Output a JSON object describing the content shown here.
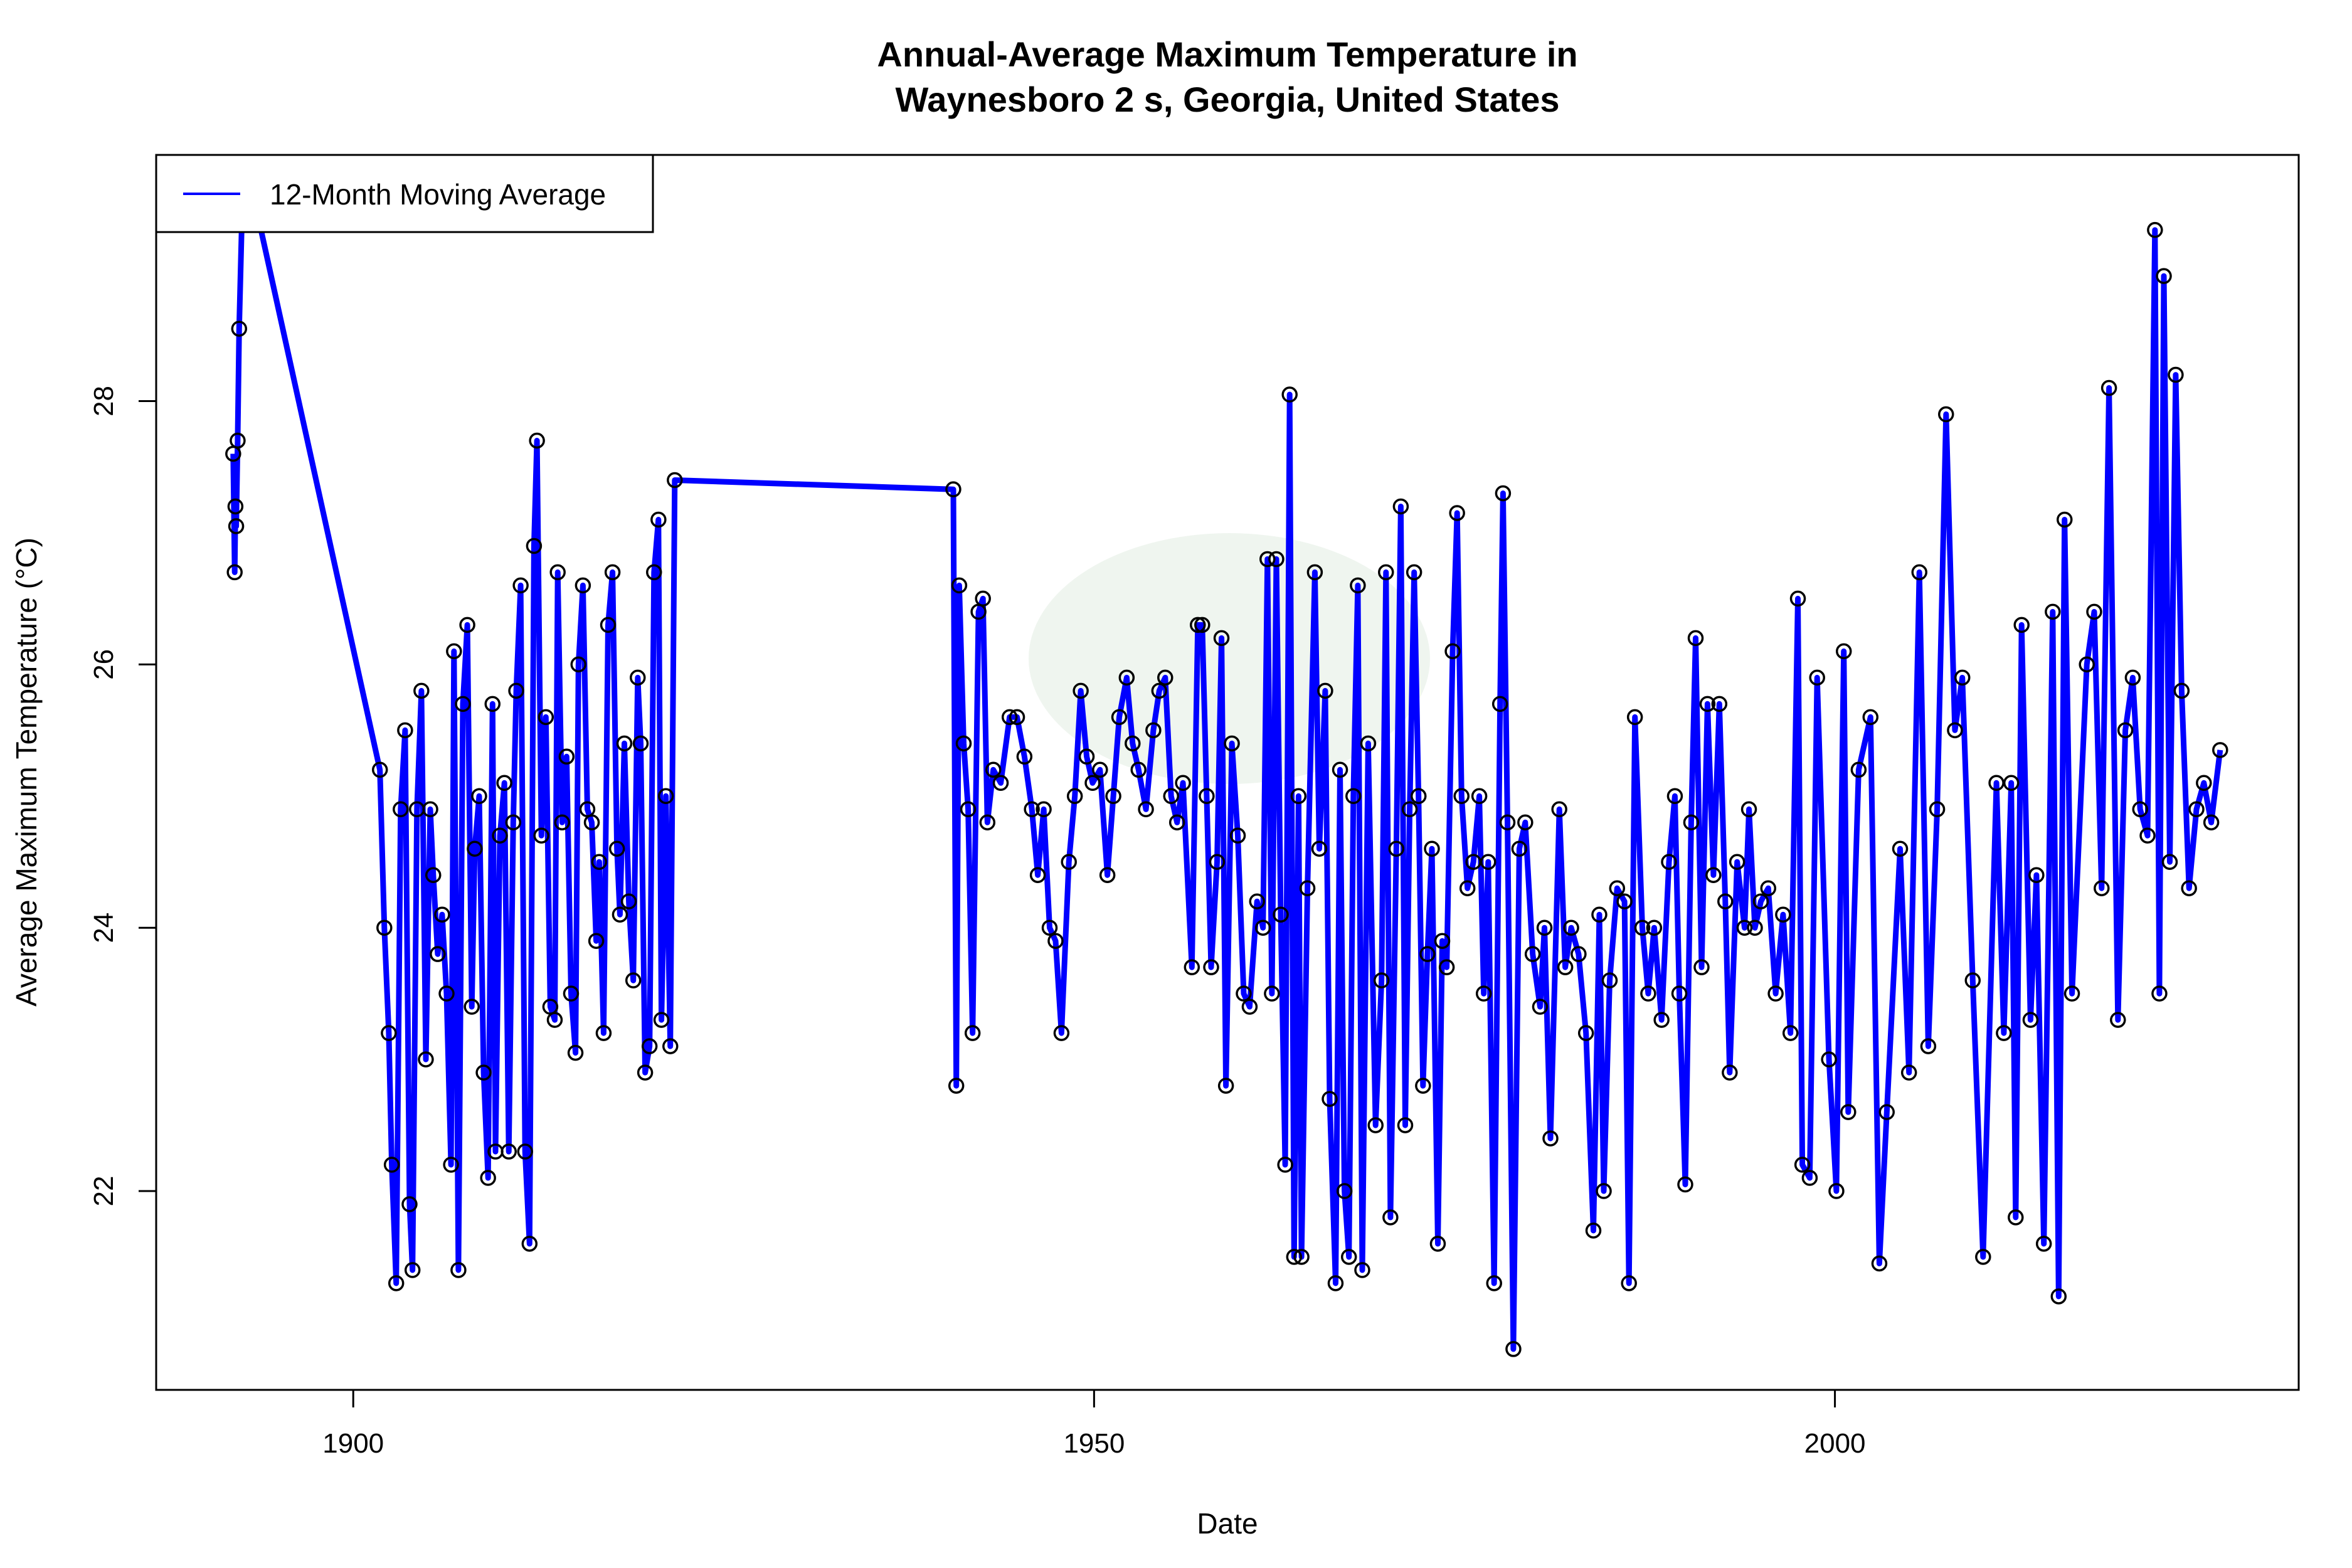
{
  "chart_data": {
    "type": "line",
    "title": [
      "Annual-Average Maximum Temperature in",
      "Waynesboro 2 s, Georgia, United States"
    ],
    "xlabel": "Date",
    "ylabel": "Average Maximum Temperature (°C)",
    "xlim": [
      1886.7,
      2031.3
    ],
    "ylim": [
      20.49,
      29.87
    ],
    "xticks": [
      1900,
      1950,
      2000
    ],
    "yticks": [
      22,
      24,
      26,
      28
    ],
    "grid": false,
    "legend": {
      "position": "top-left",
      "entries": [
        "12-Month Moving Average"
      ]
    },
    "colors": {
      "line": "#0000ff",
      "markers": "#000000"
    },
    "markers": "open-circle",
    "series": [
      {
        "name": "12-Month Moving Average",
        "points": [
          [
            1891.9,
            27.6
          ],
          [
            1892.0,
            26.7
          ],
          [
            1892.05,
            27.2
          ],
          [
            1892.1,
            27.05
          ],
          [
            1892.2,
            27.7
          ],
          [
            1892.3,
            28.55
          ],
          [
            1892.6,
            29.9
          ],
          [
            1901.8,
            25.2
          ],
          [
            1902.1,
            24.0
          ],
          [
            1902.4,
            23.2
          ],
          [
            1902.6,
            22.2
          ],
          [
            1902.9,
            21.3
          ],
          [
            1903.2,
            24.9
          ],
          [
            1903.5,
            25.5
          ],
          [
            1903.8,
            21.9
          ],
          [
            1904.0,
            21.4
          ],
          [
            1904.3,
            24.9
          ],
          [
            1904.6,
            25.8
          ],
          [
            1904.9,
            23.0
          ],
          [
            1905.2,
            24.9
          ],
          [
            1905.4,
            24.4
          ],
          [
            1905.7,
            23.8
          ],
          [
            1906.0,
            24.1
          ],
          [
            1906.3,
            23.5
          ],
          [
            1906.6,
            22.2
          ],
          [
            1906.8,
            26.1
          ],
          [
            1907.1,
            21.4
          ],
          [
            1907.4,
            25.7
          ],
          [
            1907.7,
            26.3
          ],
          [
            1908.0,
            23.4
          ],
          [
            1908.2,
            24.6
          ],
          [
            1908.5,
            25.0
          ],
          [
            1908.8,
            22.9
          ],
          [
            1909.1,
            22.1
          ],
          [
            1909.4,
            25.7
          ],
          [
            1909.6,
            22.3
          ],
          [
            1909.9,
            24.7
          ],
          [
            1910.2,
            25.1
          ],
          [
            1910.5,
            22.3
          ],
          [
            1910.8,
            24.8
          ],
          [
            1911.0,
            25.8
          ],
          [
            1911.3,
            26.6
          ],
          [
            1911.6,
            22.3
          ],
          [
            1911.9,
            21.6
          ],
          [
            1912.2,
            26.9
          ],
          [
            1912.4,
            27.7
          ],
          [
            1912.7,
            24.7
          ],
          [
            1913.0,
            25.6
          ],
          [
            1913.3,
            23.4
          ],
          [
            1913.6,
            23.3
          ],
          [
            1913.8,
            26.7
          ],
          [
            1914.1,
            24.8
          ],
          [
            1914.4,
            25.3
          ],
          [
            1914.7,
            23.5
          ],
          [
            1915.0,
            23.05
          ],
          [
            1915.2,
            26.0
          ],
          [
            1915.5,
            26.6
          ],
          [
            1915.8,
            24.9
          ],
          [
            1916.1,
            24.8
          ],
          [
            1916.4,
            23.9
          ],
          [
            1916.6,
            24.5
          ],
          [
            1916.9,
            23.2
          ],
          [
            1917.2,
            26.3
          ],
          [
            1917.5,
            26.7
          ],
          [
            1917.8,
            24.6
          ],
          [
            1918.0,
            24.1
          ],
          [
            1918.3,
            25.4
          ],
          [
            1918.6,
            24.2
          ],
          [
            1918.9,
            23.6
          ],
          [
            1919.2,
            25.9
          ],
          [
            1919.4,
            25.4
          ],
          [
            1919.7,
            22.9
          ],
          [
            1920.0,
            23.1
          ],
          [
            1920.3,
            26.7
          ],
          [
            1920.6,
            27.1
          ],
          [
            1920.8,
            23.3
          ],
          [
            1921.1,
            25.0
          ],
          [
            1921.4,
            23.1
          ],
          [
            1921.7,
            27.4
          ],
          [
            1940.5,
            27.33
          ],
          [
            1940.7,
            22.8
          ],
          [
            1940.9,
            26.6
          ],
          [
            1941.2,
            25.4
          ],
          [
            1941.5,
            24.9
          ],
          [
            1941.8,
            23.2
          ],
          [
            1942.2,
            26.4
          ],
          [
            1942.5,
            26.5
          ],
          [
            1942.8,
            24.8
          ],
          [
            1943.2,
            25.2
          ],
          [
            1943.7,
            25.1
          ],
          [
            1944.3,
            25.6
          ],
          [
            1944.8,
            25.6
          ],
          [
            1945.3,
            25.3
          ],
          [
            1945.8,
            24.9
          ],
          [
            1946.2,
            24.4
          ],
          [
            1946.6,
            24.9
          ],
          [
            1947.0,
            24.0
          ],
          [
            1947.4,
            23.9
          ],
          [
            1947.8,
            23.2
          ],
          [
            1948.3,
            24.5
          ],
          [
            1948.7,
            25.0
          ],
          [
            1949.1,
            25.8
          ],
          [
            1949.5,
            25.3
          ],
          [
            1949.9,
            25.1
          ],
          [
            1950.4,
            25.2
          ],
          [
            1950.9,
            24.4
          ],
          [
            1951.3,
            25.0
          ],
          [
            1951.7,
            25.6
          ],
          [
            1952.2,
            25.9
          ],
          [
            1952.6,
            25.4
          ],
          [
            1953.0,
            25.2
          ],
          [
            1953.5,
            24.9
          ],
          [
            1954.0,
            25.5
          ],
          [
            1954.4,
            25.8
          ],
          [
            1954.8,
            25.9
          ],
          [
            1955.2,
            25.0
          ],
          [
            1955.6,
            24.8
          ],
          [
            1956.0,
            25.1
          ],
          [
            1956.6,
            23.7
          ],
          [
            1957.0,
            26.3
          ],
          [
            1957.3,
            26.3
          ],
          [
            1957.6,
            25.0
          ],
          [
            1957.9,
            23.7
          ],
          [
            1958.3,
            24.5
          ],
          [
            1958.6,
            26.2
          ],
          [
            1958.9,
            22.8
          ],
          [
            1959.3,
            25.4
          ],
          [
            1959.7,
            24.7
          ],
          [
            1960.1,
            23.5
          ],
          [
            1960.5,
            23.4
          ],
          [
            1961.0,
            24.2
          ],
          [
            1961.4,
            24.0
          ],
          [
            1961.7,
            26.8
          ],
          [
            1962.0,
            23.5
          ],
          [
            1962.3,
            26.8
          ],
          [
            1962.6,
            24.1
          ],
          [
            1962.9,
            22.2
          ],
          [
            1963.2,
            28.05
          ],
          [
            1963.5,
            21.5
          ],
          [
            1963.8,
            25.0
          ],
          [
            1964.0,
            21.5
          ],
          [
            1964.4,
            24.3
          ],
          [
            1964.9,
            26.7
          ],
          [
            1965.2,
            24.6
          ],
          [
            1965.6,
            25.8
          ],
          [
            1965.9,
            22.7
          ],
          [
            1966.3,
            21.3
          ],
          [
            1966.6,
            25.2
          ],
          [
            1966.9,
            22.0
          ],
          [
            1967.2,
            21.5
          ],
          [
            1967.5,
            25.0
          ],
          [
            1967.8,
            26.6
          ],
          [
            1968.1,
            21.4
          ],
          [
            1968.5,
            25.4
          ],
          [
            1969.0,
            22.5
          ],
          [
            1969.4,
            23.6
          ],
          [
            1969.7,
            26.7
          ],
          [
            1970.0,
            21.8
          ],
          [
            1970.4,
            24.6
          ],
          [
            1970.7,
            27.2
          ],
          [
            1971.0,
            22.5
          ],
          [
            1971.3,
            24.9
          ],
          [
            1971.6,
            26.7
          ],
          [
            1971.9,
            25.0
          ],
          [
            1972.2,
            22.8
          ],
          [
            1972.5,
            23.8
          ],
          [
            1972.8,
            24.6
          ],
          [
            1973.2,
            21.6
          ],
          [
            1973.5,
            23.9
          ],
          [
            1973.8,
            23.7
          ],
          [
            1974.2,
            26.1
          ],
          [
            1974.5,
            27.15
          ],
          [
            1974.8,
            25.0
          ],
          [
            1975.2,
            24.3
          ],
          [
            1975.6,
            24.5
          ],
          [
            1976.0,
            25.0
          ],
          [
            1976.3,
            23.5
          ],
          [
            1976.6,
            24.5
          ],
          [
            1977.0,
            21.3
          ],
          [
            1977.4,
            25.7
          ],
          [
            1977.6,
            27.3
          ],
          [
            1977.9,
            24.8
          ],
          [
            1978.3,
            20.8
          ],
          [
            1978.7,
            24.6
          ],
          [
            1979.1,
            24.8
          ],
          [
            1979.6,
            23.8
          ],
          [
            1980.1,
            23.4
          ],
          [
            1980.4,
            24.0
          ],
          [
            1980.8,
            22.4
          ],
          [
            1981.4,
            24.9
          ],
          [
            1981.8,
            23.7
          ],
          [
            1982.2,
            24.0
          ],
          [
            1982.7,
            23.8
          ],
          [
            1983.2,
            23.2
          ],
          [
            1983.7,
            21.7
          ],
          [
            1984.1,
            24.1
          ],
          [
            1984.4,
            22.0
          ],
          [
            1984.8,
            23.6
          ],
          [
            1985.3,
            24.3
          ],
          [
            1985.8,
            24.2
          ],
          [
            1986.1,
            21.3
          ],
          [
            1986.5,
            25.6
          ],
          [
            1987.0,
            24.0
          ],
          [
            1987.4,
            23.5
          ],
          [
            1987.8,
            24.0
          ],
          [
            1988.3,
            23.3
          ],
          [
            1988.8,
            24.5
          ],
          [
            1989.2,
            25.0
          ],
          [
            1989.5,
            23.5
          ],
          [
            1989.9,
            22.05
          ],
          [
            1990.3,
            24.8
          ],
          [
            1990.6,
            26.2
          ],
          [
            1991.0,
            23.7
          ],
          [
            1991.4,
            25.7
          ],
          [
            1991.8,
            24.4
          ],
          [
            1992.2,
            25.7
          ],
          [
            1992.6,
            24.2
          ],
          [
            1992.9,
            22.9
          ],
          [
            1993.4,
            24.5
          ],
          [
            1993.9,
            24.0
          ],
          [
            1994.2,
            24.9
          ],
          [
            1994.6,
            24.0
          ],
          [
            1995.0,
            24.2
          ],
          [
            1995.5,
            24.3
          ],
          [
            1996.0,
            23.5
          ],
          [
            1996.5,
            24.1
          ],
          [
            1997.0,
            23.2
          ],
          [
            1997.5,
            26.5
          ],
          [
            1997.8,
            22.2
          ],
          [
            1998.3,
            22.1
          ],
          [
            1998.8,
            25.9
          ],
          [
            1999.6,
            23.0
          ],
          [
            2000.1,
            22.0
          ],
          [
            2000.6,
            26.1
          ],
          [
            2000.9,
            22.6
          ],
          [
            2001.6,
            25.2
          ],
          [
            2002.4,
            25.6
          ],
          [
            2003.0,
            21.45
          ],
          [
            2003.5,
            22.6
          ],
          [
            2004.4,
            24.6
          ],
          [
            2005.0,
            22.9
          ],
          [
            2005.7,
            26.7
          ],
          [
            2006.3,
            23.1
          ],
          [
            2006.9,
            24.9
          ],
          [
            2007.5,
            27.9
          ],
          [
            2008.1,
            25.5
          ],
          [
            2008.6,
            25.9
          ],
          [
            2009.3,
            23.6
          ],
          [
            2010.0,
            21.5
          ],
          [
            2010.9,
            25.1
          ],
          [
            2011.4,
            23.2
          ],
          [
            2011.9,
            25.1
          ],
          [
            2012.2,
            21.8
          ],
          [
            2012.6,
            26.3
          ],
          [
            2013.2,
            23.3
          ],
          [
            2013.6,
            24.4
          ],
          [
            2014.1,
            21.6
          ],
          [
            2014.7,
            26.4
          ],
          [
            2015.1,
            21.2
          ],
          [
            2015.5,
            27.1
          ],
          [
            2016.0,
            23.5
          ],
          [
            2017.0,
            26.0
          ],
          [
            2017.5,
            26.4
          ],
          [
            2018.0,
            24.3
          ],
          [
            2018.5,
            28.1
          ],
          [
            2019.1,
            23.3
          ],
          [
            2019.6,
            25.5
          ],
          [
            2020.1,
            25.9
          ],
          [
            2020.6,
            24.9
          ],
          [
            2021.1,
            24.7
          ],
          [
            2021.6,
            29.3
          ],
          [
            2021.9,
            23.5
          ],
          [
            2022.2,
            28.95
          ],
          [
            2022.6,
            24.5
          ],
          [
            2023.0,
            28.2
          ],
          [
            2023.4,
            25.8
          ],
          [
            2023.9,
            24.3
          ],
          [
            2024.4,
            24.9
          ],
          [
            2024.9,
            25.1
          ],
          [
            2025.4,
            24.8
          ],
          [
            2026.0,
            25.35
          ]
        ]
      }
    ]
  }
}
